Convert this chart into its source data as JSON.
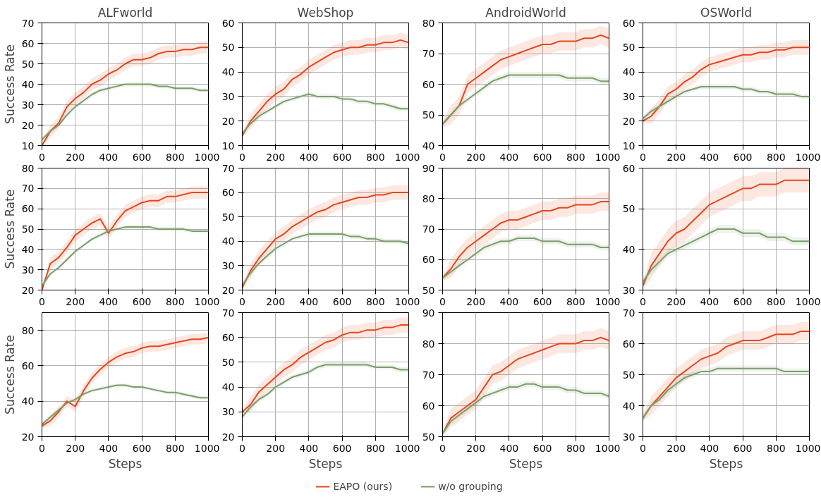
{
  "chart_data": [
    {
      "type": "line",
      "title": "ALFworld",
      "ylabel": "Success Rate",
      "x": [
        0,
        50,
        100,
        150,
        200,
        250,
        300,
        350,
        400,
        450,
        500,
        550,
        600,
        650,
        700,
        750,
        800,
        850,
        900,
        950,
        1000
      ],
      "xlim": [
        0,
        1000
      ],
      "xticks": [
        0,
        200,
        400,
        600,
        800,
        1000
      ],
      "ylim": [
        10,
        70
      ],
      "yticks": [
        10,
        20,
        30,
        40,
        50,
        60,
        70
      ],
      "grid": true,
      "series": [
        {
          "color": "#e8461a",
          "values": [
            10,
            17,
            21,
            29,
            33,
            36,
            40,
            42,
            45,
            47,
            50,
            52,
            52,
            53,
            55,
            56,
            56,
            57,
            57,
            58,
            58
          ],
          "lower": [
            10,
            14,
            18,
            26,
            30,
            33,
            37,
            39,
            42,
            44,
            47,
            49,
            49,
            50,
            52,
            53,
            53,
            54,
            54,
            55,
            55
          ],
          "upper": [
            11,
            20,
            24,
            32,
            36,
            39,
            43,
            45,
            48,
            50,
            53,
            55,
            55,
            56,
            58,
            59,
            59,
            60,
            60,
            61,
            61
          ]
        },
        {
          "color": "#7a9e6a",
          "values": [
            13,
            17,
            20,
            25,
            29,
            32,
            35,
            37,
            38,
            39,
            40,
            40,
            40,
            40,
            39,
            39,
            38,
            38,
            38,
            37,
            37
          ],
          "lower": [
            12,
            16,
            19,
            24,
            28,
            31,
            34,
            36,
            37,
            38,
            39,
            39,
            39,
            39,
            38,
            38,
            37,
            37,
            37,
            36,
            36
          ],
          "upper": [
            14,
            18,
            21,
            26,
            30,
            33,
            36,
            38,
            39,
            40,
            41,
            41,
            41,
            41,
            40,
            40,
            39,
            39,
            39,
            38,
            38
          ]
        }
      ]
    },
    {
      "type": "line",
      "title": "WebShop",
      "x": [
        0,
        50,
        100,
        150,
        200,
        250,
        300,
        350,
        400,
        450,
        500,
        550,
        600,
        650,
        700,
        750,
        800,
        850,
        900,
        950,
        1000
      ],
      "xlim": [
        0,
        1000
      ],
      "xticks": [
        0,
        200,
        400,
        600,
        800,
        1000
      ],
      "ylim": [
        10,
        60
      ],
      "yticks": [
        10,
        20,
        30,
        40,
        50,
        60
      ],
      "grid": true,
      "series": [
        {
          "color": "#e8461a",
          "values": [
            14,
            20,
            24,
            28,
            31,
            33,
            37,
            39,
            42,
            44,
            46,
            48,
            49,
            50,
            50,
            51,
            51,
            52,
            52,
            53,
            52
          ],
          "lower": [
            13,
            17,
            21,
            25,
            28,
            30,
            34,
            36,
            39,
            41,
            43,
            45,
            46,
            47,
            47,
            48,
            48,
            49,
            49,
            50,
            49
          ],
          "upper": [
            15,
            23,
            27,
            31,
            34,
            36,
            40,
            42,
            45,
            47,
            49,
            51,
            52,
            53,
            53,
            54,
            54,
            55,
            55,
            56,
            55
          ]
        },
        {
          "color": "#7a9e6a",
          "values": [
            15,
            19,
            22,
            24,
            26,
            28,
            29,
            30,
            31,
            30,
            30,
            30,
            29,
            29,
            28,
            28,
            27,
            27,
            26,
            25,
            25
          ],
          "lower": [
            14,
            18,
            21,
            23,
            25,
            27,
            28,
            29,
            30,
            29,
            29,
            29,
            28,
            28,
            27,
            27,
            26,
            26,
            25,
            24,
            24
          ],
          "upper": [
            16,
            20,
            23,
            25,
            27,
            29,
            30,
            31,
            32,
            31,
            31,
            31,
            30,
            30,
            29,
            29,
            28,
            28,
            27,
            26,
            26
          ]
        }
      ]
    },
    {
      "type": "line",
      "title": "AndroidWorld",
      "x": [
        0,
        50,
        100,
        150,
        200,
        250,
        300,
        350,
        400,
        450,
        500,
        550,
        600,
        650,
        700,
        750,
        800,
        850,
        900,
        950,
        1000
      ],
      "xlim": [
        0,
        1000
      ],
      "xticks": [
        0,
        200,
        400,
        600,
        800,
        1000
      ],
      "ylim": [
        40,
        80
      ],
      "yticks": [
        40,
        50,
        60,
        70,
        80
      ],
      "grid": true,
      "series": [
        {
          "color": "#e8461a",
          "values": [
            47,
            50,
            53,
            60,
            62,
            64,
            66,
            68,
            69,
            70,
            71,
            72,
            73,
            73,
            74,
            74,
            74,
            75,
            75,
            76,
            75
          ],
          "lower": [
            46,
            47,
            50,
            57,
            59,
            61,
            63,
            65,
            66,
            67,
            68,
            69,
            70,
            70,
            71,
            71,
            71,
            72,
            72,
            73,
            72
          ],
          "upper": [
            48,
            53,
            56,
            63,
            65,
            67,
            69,
            71,
            72,
            73,
            74,
            75,
            76,
            76,
            77,
            77,
            77,
            78,
            78,
            79,
            78
          ]
        },
        {
          "color": "#7a9e6a",
          "values": [
            47,
            50,
            53,
            55,
            57,
            59,
            61,
            62,
            63,
            63,
            63,
            63,
            63,
            63,
            63,
            62,
            62,
            62,
            62,
            61,
            61
          ],
          "lower": [
            46,
            49,
            52,
            54,
            56,
            58,
            60,
            61,
            62,
            62,
            62,
            62,
            62,
            62,
            62,
            61,
            61,
            61,
            61,
            60,
            60
          ],
          "upper": [
            48,
            51,
            54,
            56,
            58,
            60,
            62,
            63,
            64,
            64,
            64,
            64,
            64,
            64,
            64,
            63,
            63,
            63,
            63,
            62,
            62
          ]
        }
      ]
    },
    {
      "type": "line",
      "title": "OSWorld",
      "x": [
        0,
        50,
        100,
        150,
        200,
        250,
        300,
        350,
        400,
        450,
        500,
        550,
        600,
        650,
        700,
        750,
        800,
        850,
        900,
        950,
        1000
      ],
      "xlim": [
        0,
        1000
      ],
      "xticks": [
        0,
        200,
        400,
        600,
        800,
        1000
      ],
      "ylim": [
        10,
        60
      ],
      "yticks": [
        10,
        20,
        30,
        40,
        50,
        60
      ],
      "grid": true,
      "series": [
        {
          "color": "#e8461a",
          "values": [
            20,
            22,
            26,
            31,
            33,
            36,
            38,
            41,
            43,
            44,
            45,
            46,
            47,
            47,
            48,
            48,
            49,
            49,
            50,
            50,
            50
          ],
          "lower": [
            19,
            19,
            23,
            28,
            30,
            33,
            35,
            38,
            40,
            41,
            42,
            43,
            44,
            44,
            45,
            45,
            46,
            46,
            47,
            47,
            47
          ],
          "upper": [
            21,
            25,
            29,
            34,
            36,
            39,
            41,
            44,
            46,
            47,
            48,
            49,
            50,
            50,
            51,
            51,
            52,
            52,
            53,
            53,
            53
          ]
        },
        {
          "color": "#7a9e6a",
          "values": [
            21,
            24,
            26,
            28,
            30,
            32,
            33,
            34,
            34,
            34,
            34,
            34,
            33,
            33,
            32,
            32,
            31,
            31,
            31,
            30,
            30
          ],
          "lower": [
            20,
            23,
            25,
            27,
            29,
            31,
            32,
            33,
            33,
            33,
            33,
            33,
            32,
            32,
            31,
            31,
            30,
            30,
            30,
            29,
            29
          ],
          "upper": [
            22,
            25,
            27,
            29,
            31,
            33,
            34,
            35,
            35,
            35,
            35,
            35,
            34,
            34,
            33,
            33,
            32,
            32,
            32,
            31,
            31
          ]
        }
      ]
    },
    {
      "type": "line",
      "ylabel": "Success Rate",
      "x": [
        0,
        50,
        100,
        150,
        200,
        250,
        300,
        350,
        400,
        450,
        500,
        550,
        600,
        650,
        700,
        750,
        800,
        850,
        900,
        950,
        1000
      ],
      "xlim": [
        0,
        1000
      ],
      "xticks": [
        0,
        200,
        400,
        600,
        800,
        1000
      ],
      "ylim": [
        20,
        80
      ],
      "yticks": [
        20,
        30,
        40,
        50,
        60,
        70,
        80
      ],
      "grid": true,
      "series": [
        {
          "color": "#e8461a",
          "values": [
            20,
            33,
            36,
            41,
            47,
            50,
            53,
            55,
            48,
            54,
            59,
            61,
            63,
            64,
            64,
            66,
            66,
            67,
            68,
            68,
            68
          ],
          "lower": [
            20,
            30,
            33,
            38,
            44,
            47,
            50,
            52,
            45,
            51,
            56,
            58,
            60,
            61,
            61,
            63,
            63,
            64,
            65,
            65,
            65
          ],
          "upper": [
            21,
            36,
            39,
            44,
            50,
            53,
            56,
            58,
            51,
            57,
            62,
            64,
            66,
            67,
            67,
            69,
            69,
            70,
            71,
            71,
            71
          ]
        },
        {
          "color": "#7a9e6a",
          "values": [
            22,
            28,
            31,
            35,
            39,
            42,
            45,
            47,
            49,
            50,
            51,
            51,
            51,
            51,
            50,
            50,
            50,
            50,
            49,
            49,
            49
          ],
          "lower": [
            21,
            27,
            30,
            34,
            38,
            41,
            44,
            46,
            48,
            49,
            50,
            50,
            50,
            50,
            49,
            49,
            49,
            49,
            48,
            48,
            48
          ],
          "upper": [
            23,
            29,
            32,
            36,
            40,
            43,
            46,
            48,
            50,
            51,
            52,
            52,
            52,
            52,
            51,
            51,
            51,
            51,
            50,
            50,
            50
          ]
        }
      ]
    },
    {
      "type": "line",
      "x": [
        0,
        50,
        100,
        150,
        200,
        250,
        300,
        350,
        400,
        450,
        500,
        550,
        600,
        650,
        700,
        750,
        800,
        850,
        900,
        950,
        1000
      ],
      "xlim": [
        0,
        1000
      ],
      "xticks": [
        0,
        200,
        400,
        600,
        800,
        1000
      ],
      "ylim": [
        20,
        70
      ],
      "yticks": [
        20,
        30,
        40,
        50,
        60,
        70
      ],
      "grid": true,
      "series": [
        {
          "color": "#e8461a",
          "values": [
            21,
            28,
            33,
            37,
            41,
            43,
            46,
            48,
            50,
            52,
            53,
            55,
            56,
            57,
            58,
            58,
            59,
            59,
            60,
            60,
            60
          ],
          "lower": [
            20,
            25,
            30,
            34,
            38,
            40,
            43,
            45,
            47,
            49,
            50,
            52,
            53,
            54,
            55,
            55,
            56,
            56,
            57,
            57,
            57
          ],
          "upper": [
            22,
            31,
            36,
            40,
            44,
            46,
            49,
            51,
            53,
            55,
            56,
            58,
            59,
            60,
            61,
            61,
            62,
            62,
            63,
            63,
            63
          ]
        },
        {
          "color": "#7a9e6a",
          "values": [
            22,
            27,
            31,
            34,
            37,
            39,
            41,
            42,
            43,
            43,
            43,
            43,
            43,
            42,
            42,
            41,
            41,
            40,
            40,
            40,
            39
          ],
          "lower": [
            21,
            26,
            30,
            33,
            36,
            38,
            40,
            41,
            42,
            42,
            42,
            42,
            42,
            41,
            41,
            40,
            40,
            39,
            39,
            39,
            38
          ],
          "upper": [
            23,
            28,
            32,
            35,
            38,
            40,
            42,
            43,
            44,
            44,
            44,
            44,
            44,
            43,
            43,
            42,
            42,
            41,
            41,
            41,
            40
          ]
        }
      ]
    },
    {
      "type": "line",
      "x": [
        0,
        50,
        100,
        150,
        200,
        250,
        300,
        350,
        400,
        450,
        500,
        550,
        600,
        650,
        700,
        750,
        800,
        850,
        900,
        950,
        1000
      ],
      "xlim": [
        0,
        1000
      ],
      "xticks": [
        0,
        200,
        400,
        600,
        800,
        1000
      ],
      "ylim": [
        50,
        90
      ],
      "yticks": [
        50,
        60,
        70,
        80,
        90
      ],
      "grid": true,
      "series": [
        {
          "color": "#e8461a",
          "values": [
            54,
            57,
            61,
            64,
            66,
            68,
            70,
            72,
            73,
            73,
            74,
            75,
            76,
            76,
            77,
            77,
            78,
            78,
            78,
            79,
            79
          ],
          "lower": [
            53,
            54,
            58,
            61,
            63,
            65,
            67,
            69,
            70,
            70,
            71,
            72,
            73,
            73,
            74,
            74,
            75,
            75,
            75,
            76,
            76
          ],
          "upper": [
            55,
            60,
            64,
            67,
            69,
            71,
            73,
            75,
            76,
            76,
            77,
            78,
            79,
            79,
            80,
            80,
            81,
            81,
            81,
            82,
            82
          ]
        },
        {
          "color": "#7a9e6a",
          "values": [
            54,
            56,
            58,
            60,
            62,
            64,
            65,
            66,
            66,
            67,
            67,
            67,
            66,
            66,
            66,
            65,
            65,
            65,
            65,
            64,
            64
          ],
          "lower": [
            53,
            55,
            57,
            59,
            61,
            63,
            64,
            65,
            65,
            66,
            66,
            66,
            65,
            65,
            65,
            64,
            64,
            64,
            64,
            63,
            63
          ],
          "upper": [
            55,
            57,
            59,
            61,
            63,
            65,
            66,
            67,
            67,
            68,
            68,
            68,
            67,
            67,
            67,
            66,
            66,
            66,
            66,
            65,
            65
          ]
        }
      ]
    },
    {
      "type": "line",
      "x": [
        0,
        50,
        100,
        150,
        200,
        250,
        300,
        350,
        400,
        450,
        500,
        550,
        600,
        650,
        700,
        750,
        800,
        850,
        900,
        950,
        1000
      ],
      "xlim": [
        0,
        1000
      ],
      "xticks": [
        0,
        200,
        400,
        600,
        800,
        1000
      ],
      "ylim": [
        30,
        60
      ],
      "yticks": [
        30,
        40,
        50,
        60
      ],
      "grid": true,
      "series": [
        {
          "color": "#e8461a",
          "values": [
            31,
            36,
            39,
            42,
            44,
            45,
            47,
            49,
            51,
            52,
            53,
            54,
            55,
            55,
            56,
            56,
            56,
            57,
            57,
            57,
            57
          ],
          "lower": [
            30,
            33,
            36,
            39,
            41,
            42,
            44,
            46,
            48,
            49,
            50,
            51,
            52,
            52,
            53,
            53,
            53,
            54,
            54,
            54,
            54
          ],
          "upper": [
            32,
            39,
            42,
            45,
            47,
            48,
            50,
            52,
            54,
            55,
            56,
            57,
            58,
            58,
            59,
            59,
            59,
            60,
            60,
            60,
            60
          ]
        },
        {
          "color": "#7a9e6a",
          "values": [
            32,
            35,
            37,
            39,
            40,
            41,
            42,
            43,
            44,
            45,
            45,
            45,
            44,
            44,
            44,
            43,
            43,
            43,
            42,
            42,
            42
          ],
          "lower": [
            31,
            34,
            36,
            38,
            39,
            40,
            41,
            42,
            43,
            44,
            44,
            44,
            43,
            43,
            43,
            42,
            42,
            42,
            41,
            41,
            41
          ],
          "upper": [
            33,
            36,
            38,
            40,
            41,
            42,
            43,
            44,
            45,
            46,
            46,
            46,
            45,
            45,
            45,
            44,
            44,
            44,
            43,
            43,
            43
          ]
        }
      ]
    },
    {
      "type": "line",
      "xlabel": "Steps",
      "ylabel": "Success Rate",
      "x": [
        0,
        50,
        100,
        150,
        200,
        250,
        300,
        350,
        400,
        450,
        500,
        550,
        600,
        650,
        700,
        750,
        800,
        850,
        900,
        950,
        1000
      ],
      "xlim": [
        0,
        1000
      ],
      "xticks": [
        0,
        200,
        400,
        600,
        800,
        1000
      ],
      "ylim": [
        20,
        90
      ],
      "yticks": [
        20,
        40,
        60,
        80
      ],
      "grid": true,
      "series": [
        {
          "color": "#e8461a",
          "values": [
            26,
            29,
            34,
            40,
            37,
            46,
            53,
            58,
            62,
            65,
            67,
            68,
            70,
            71,
            71,
            72,
            73,
            74,
            75,
            75,
            76
          ],
          "lower": [
            25,
            26,
            31,
            37,
            34,
            43,
            50,
            55,
            59,
            62,
            64,
            65,
            67,
            68,
            68,
            69,
            70,
            71,
            72,
            72,
            73
          ],
          "upper": [
            27,
            32,
            37,
            43,
            40,
            49,
            56,
            61,
            65,
            68,
            70,
            71,
            73,
            74,
            74,
            75,
            76,
            77,
            78,
            78,
            79
          ]
        },
        {
          "color": "#7a9e6a",
          "values": [
            27,
            31,
            35,
            39,
            41,
            44,
            46,
            47,
            48,
            49,
            49,
            48,
            48,
            47,
            46,
            45,
            45,
            44,
            43,
            42,
            42
          ],
          "lower": [
            26,
            30,
            34,
            38,
            40,
            43,
            45,
            46,
            47,
            48,
            48,
            47,
            47,
            46,
            45,
            44,
            44,
            43,
            42,
            41,
            41
          ],
          "upper": [
            28,
            32,
            36,
            40,
            42,
            45,
            47,
            48,
            49,
            50,
            50,
            49,
            49,
            48,
            47,
            46,
            46,
            45,
            44,
            43,
            43
          ]
        }
      ]
    },
    {
      "type": "line",
      "xlabel": "Steps",
      "x": [
        0,
        50,
        100,
        150,
        200,
        250,
        300,
        350,
        400,
        450,
        500,
        550,
        600,
        650,
        700,
        750,
        800,
        850,
        900,
        950,
        1000
      ],
      "xlim": [
        0,
        1000
      ],
      "xticks": [
        0,
        200,
        400,
        600,
        800,
        1000
      ],
      "ylim": [
        20,
        70
      ],
      "yticks": [
        20,
        30,
        40,
        50,
        60,
        70
      ],
      "grid": true,
      "series": [
        {
          "color": "#e8461a",
          "values": [
            30,
            33,
            38,
            41,
            44,
            47,
            49,
            52,
            54,
            56,
            58,
            59,
            61,
            62,
            62,
            63,
            63,
            64,
            64,
            65,
            65
          ],
          "lower": [
            29,
            30,
            35,
            38,
            41,
            44,
            46,
            49,
            51,
            53,
            55,
            56,
            58,
            59,
            59,
            60,
            60,
            61,
            61,
            62,
            62
          ],
          "upper": [
            31,
            36,
            41,
            44,
            47,
            50,
            52,
            55,
            57,
            59,
            61,
            62,
            64,
            65,
            65,
            66,
            66,
            67,
            67,
            68,
            68
          ]
        },
        {
          "color": "#7a9e6a",
          "values": [
            28,
            32,
            35,
            37,
            40,
            42,
            44,
            45,
            46,
            48,
            49,
            49,
            49,
            49,
            49,
            49,
            48,
            48,
            48,
            47,
            47
          ],
          "lower": [
            27,
            31,
            34,
            36,
            39,
            41,
            43,
            44,
            45,
            47,
            48,
            48,
            48,
            48,
            48,
            48,
            47,
            47,
            47,
            46,
            46
          ],
          "upper": [
            29,
            33,
            36,
            38,
            41,
            43,
            45,
            46,
            47,
            49,
            50,
            50,
            50,
            50,
            50,
            50,
            49,
            49,
            49,
            48,
            48
          ]
        }
      ]
    },
    {
      "type": "line",
      "xlabel": "Steps",
      "x": [
        0,
        50,
        100,
        150,
        200,
        250,
        300,
        350,
        400,
        450,
        500,
        550,
        600,
        650,
        700,
        750,
        800,
        850,
        900,
        950,
        1000
      ],
      "xlim": [
        0,
        1000
      ],
      "xticks": [
        0,
        200,
        400,
        600,
        800,
        1000
      ],
      "ylim": [
        50,
        90
      ],
      "yticks": [
        50,
        60,
        70,
        80,
        90
      ],
      "grid": true,
      "series": [
        {
          "color": "#e8461a",
          "values": [
            51,
            56,
            58,
            60,
            62,
            66,
            70,
            71,
            73,
            75,
            76,
            77,
            78,
            79,
            80,
            80,
            80,
            81,
            81,
            82,
            81
          ],
          "lower": [
            50,
            53,
            55,
            57,
            59,
            63,
            67,
            68,
            70,
            72,
            73,
            74,
            75,
            76,
            77,
            77,
            77,
            78,
            78,
            79,
            78
          ],
          "upper": [
            52,
            59,
            61,
            63,
            65,
            69,
            73,
            74,
            76,
            78,
            79,
            80,
            81,
            82,
            83,
            83,
            83,
            84,
            84,
            85,
            84
          ]
        },
        {
          "color": "#7a9e6a",
          "values": [
            51,
            55,
            57,
            59,
            61,
            63,
            64,
            65,
            66,
            66,
            67,
            67,
            66,
            66,
            66,
            65,
            65,
            64,
            64,
            64,
            63
          ],
          "lower": [
            50,
            54,
            56,
            58,
            60,
            62,
            63,
            64,
            65,
            65,
            66,
            66,
            65,
            65,
            65,
            64,
            64,
            63,
            63,
            63,
            62
          ],
          "upper": [
            52,
            56,
            58,
            60,
            62,
            64,
            65,
            66,
            67,
            67,
            68,
            68,
            67,
            67,
            67,
            66,
            66,
            65,
            65,
            65,
            64
          ]
        }
      ]
    },
    {
      "type": "line",
      "xlabel": "Steps",
      "legend": "bottom",
      "x": [
        0,
        50,
        100,
        150,
        200,
        250,
        300,
        350,
        400,
        450,
        500,
        550,
        600,
        650,
        700,
        750,
        800,
        850,
        900,
        950,
        1000
      ],
      "xlim": [
        0,
        1000
      ],
      "xticks": [
        0,
        200,
        400,
        600,
        800,
        1000
      ],
      "ylim": [
        30,
        70
      ],
      "yticks": [
        30,
        40,
        50,
        60,
        70
      ],
      "grid": true,
      "series": [
        {
          "name": "EAPO (ours)",
          "color": "#e8461a",
          "values": [
            36,
            40,
            43,
            46,
            49,
            51,
            53,
            55,
            56,
            57,
            59,
            60,
            61,
            61,
            61,
            62,
            63,
            63,
            63,
            64,
            64
          ],
          "lower": [
            35,
            37,
            40,
            43,
            46,
            48,
            50,
            52,
            53,
            54,
            56,
            57,
            58,
            58,
            58,
            59,
            60,
            60,
            60,
            61,
            61
          ],
          "upper": [
            37,
            43,
            46,
            49,
            52,
            54,
            56,
            58,
            59,
            60,
            62,
            63,
            64,
            64,
            64,
            65,
            66,
            66,
            66,
            67,
            67
          ]
        },
        {
          "name": "w/o grouping",
          "color": "#7a9e6a",
          "values": [
            36,
            40,
            42,
            45,
            47,
            49,
            50,
            51,
            51,
            52,
            52,
            52,
            52,
            52,
            52,
            52,
            52,
            51,
            51,
            51,
            51
          ],
          "lower": [
            35,
            39,
            41,
            44,
            46,
            48,
            49,
            50,
            50,
            51,
            51,
            51,
            51,
            51,
            51,
            51,
            51,
            50,
            50,
            50,
            50
          ],
          "upper": [
            37,
            41,
            43,
            46,
            48,
            50,
            51,
            52,
            52,
            53,
            53,
            53,
            53,
            53,
            53,
            53,
            53,
            52,
            52,
            52,
            52
          ]
        }
      ]
    }
  ]
}
